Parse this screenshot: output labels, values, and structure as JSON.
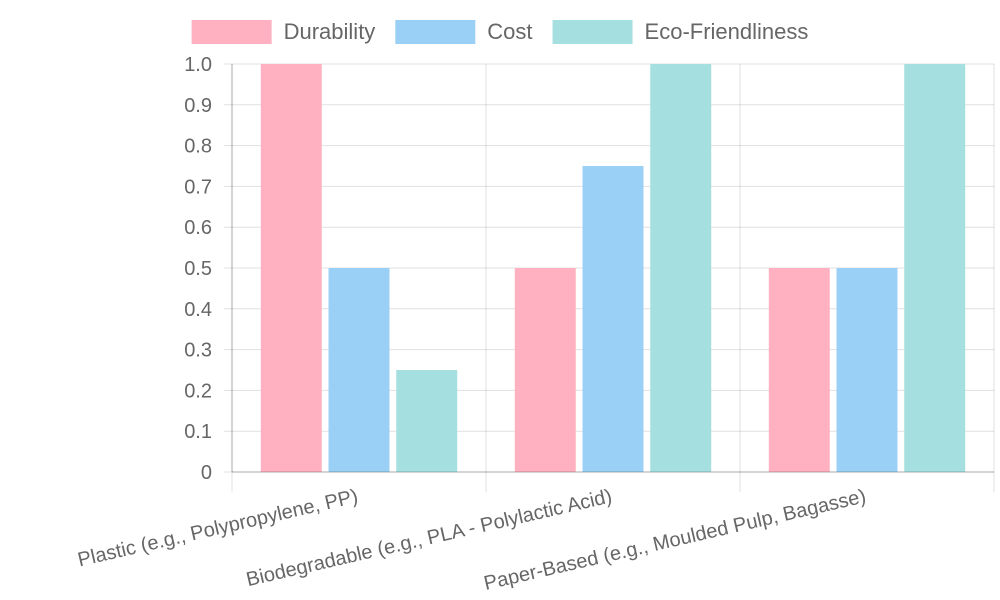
{
  "chart_data": {
    "type": "bar",
    "categories": [
      "Plastic (e.g., Polypropylene, PP)",
      "Biodegradable (e.g., PLA - Polylactic Acid)",
      "Paper-Based (e.g., Moulded Pulp, Bagasse)"
    ],
    "series": [
      {
        "name": "Durability",
        "values": [
          1.0,
          0.5,
          0.5
        ],
        "fill": "#ffb1c1",
        "stroke": "#ff6384"
      },
      {
        "name": "Cost",
        "values": [
          0.5,
          0.75,
          0.5
        ],
        "fill": "#9ad0f5",
        "stroke": "#36a2eb"
      },
      {
        "name": "Eco-Friendliness",
        "values": [
          0.25,
          1.0,
          1.0
        ],
        "fill": "#a5dfdf",
        "stroke": "#4bc0c0"
      }
    ],
    "y_ticks": [
      "0",
      "0.1",
      "0.2",
      "0.3",
      "0.4",
      "0.5",
      "0.6",
      "0.7",
      "0.8",
      "0.9",
      "1.0"
    ],
    "ylim": [
      0,
      1.0
    ],
    "title": "",
    "xlabel": "",
    "ylabel": "",
    "grid": true,
    "legend_position": "top"
  }
}
